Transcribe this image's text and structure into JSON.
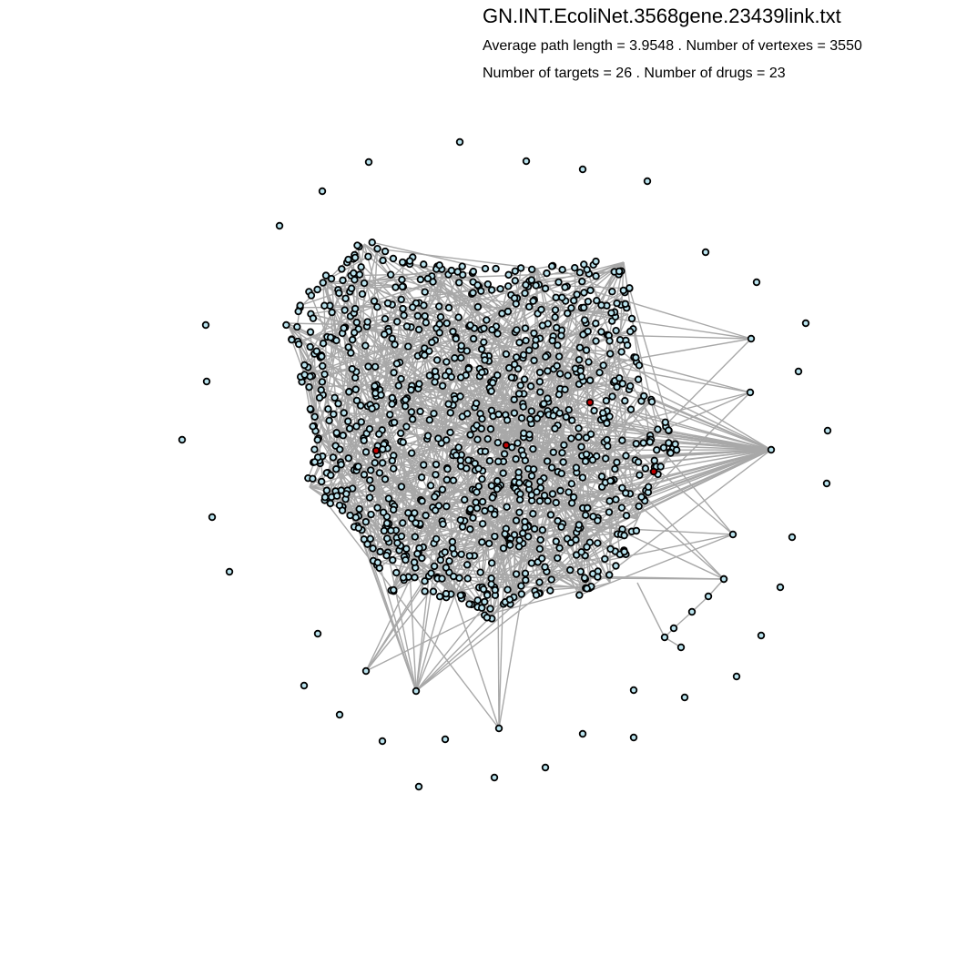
{
  "figure": {
    "title": "GN.INT.EcoliNet.3568gene.23439link.txt",
    "stats_line_1": "Average path length = 3.9548 . Number of vertexes = 3550",
    "stats_line_2": "Number of targets = 26 . Number of drugs = 23"
  },
  "colors": {
    "edge": "#a8a8a8",
    "node_fill": "#b9e3ee",
    "node_stroke": "#000000",
    "target_fill": "#c00000",
    "background": "#ffffff"
  }
}
